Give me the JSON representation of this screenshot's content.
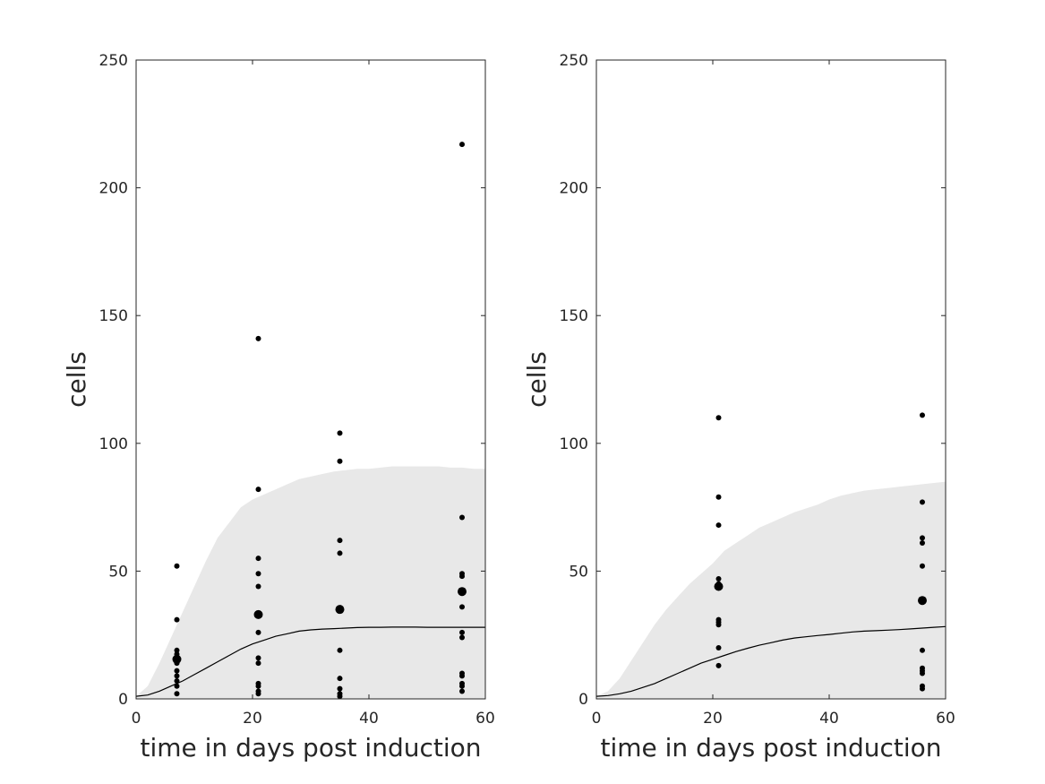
{
  "chart_data": [
    {
      "type": "scatter",
      "xlabel": "time in days post induction",
      "ylabel": "cells",
      "xlim": [
        0,
        60
      ],
      "ylim": [
        0,
        250
      ],
      "xticks": [
        0,
        20,
        40,
        60
      ],
      "yticks": [
        0,
        50,
        100,
        150,
        200,
        250
      ],
      "grid": false,
      "band_color": "#e8e8e8",
      "line_color": "#000000",
      "point_color": "#000000",
      "band": {
        "x": [
          0,
          2,
          4,
          6,
          8,
          10,
          12,
          14,
          16,
          18,
          20,
          22,
          24,
          26,
          28,
          30,
          32,
          34,
          36,
          38,
          40,
          42,
          44,
          46,
          48,
          50,
          52,
          54,
          56,
          58,
          60
        ],
        "lower": [
          0,
          0,
          0,
          0,
          0,
          0,
          0,
          0,
          0,
          0,
          0,
          0,
          0,
          0,
          0,
          0,
          0,
          0,
          0,
          0,
          0,
          0,
          0,
          0,
          0,
          0,
          0,
          0,
          0,
          0,
          0
        ],
        "upper": [
          1,
          5,
          14,
          24,
          34,
          44,
          54,
          63,
          69,
          75,
          78,
          80,
          82,
          84,
          86,
          87,
          88,
          89,
          89.5,
          90,
          90,
          90.5,
          91,
          91,
          91,
          91,
          91,
          90.5,
          90.5,
          90,
          90
        ]
      },
      "mean": {
        "x": [
          0,
          2,
          4,
          6,
          8,
          10,
          12,
          14,
          16,
          18,
          20,
          22,
          24,
          26,
          28,
          30,
          32,
          34,
          36,
          38,
          40,
          42,
          44,
          46,
          48,
          50,
          52,
          54,
          56,
          58,
          60
        ],
        "y": [
          1,
          1.5,
          3,
          5,
          7,
          9.5,
          12,
          14.5,
          17,
          19.5,
          21.5,
          23,
          24.5,
          25.5,
          26.5,
          27,
          27.3,
          27.5,
          27.7,
          27.9,
          28,
          28,
          28.1,
          28.1,
          28.1,
          28,
          28,
          28,
          28,
          28,
          28
        ]
      },
      "points": [
        {
          "x": 7,
          "y": 52
        },
        {
          "x": 7,
          "y": 31
        },
        {
          "x": 7,
          "y": 19
        },
        {
          "x": 7,
          "y": 17.5
        },
        {
          "x": 7,
          "y": 14
        },
        {
          "x": 7,
          "y": 11
        },
        {
          "x": 7,
          "y": 9
        },
        {
          "x": 7,
          "y": 7
        },
        {
          "x": 7,
          "y": 5
        },
        {
          "x": 7,
          "y": 2
        },
        {
          "x": 21,
          "y": 141
        },
        {
          "x": 21,
          "y": 82
        },
        {
          "x": 21,
          "y": 55
        },
        {
          "x": 21,
          "y": 49
        },
        {
          "x": 21,
          "y": 44
        },
        {
          "x": 21,
          "y": 26
        },
        {
          "x": 21,
          "y": 16
        },
        {
          "x": 21,
          "y": 14
        },
        {
          "x": 21,
          "y": 6
        },
        {
          "x": 21,
          "y": 5
        },
        {
          "x": 21,
          "y": 3
        },
        {
          "x": 21,
          "y": 2
        },
        {
          "x": 35,
          "y": 104
        },
        {
          "x": 35,
          "y": 93
        },
        {
          "x": 35,
          "y": 62
        },
        {
          "x": 35,
          "y": 57
        },
        {
          "x": 35,
          "y": 19
        },
        {
          "x": 35,
          "y": 8
        },
        {
          "x": 35,
          "y": 4
        },
        {
          "x": 35,
          "y": 2
        },
        {
          "x": 35,
          "y": 1
        },
        {
          "x": 56,
          "y": 217
        },
        {
          "x": 56,
          "y": 71
        },
        {
          "x": 56,
          "y": 49
        },
        {
          "x": 56,
          "y": 48
        },
        {
          "x": 56,
          "y": 36
        },
        {
          "x": 56,
          "y": 26
        },
        {
          "x": 56,
          "y": 24
        },
        {
          "x": 56,
          "y": 10
        },
        {
          "x": 56,
          "y": 9
        },
        {
          "x": 56,
          "y": 6
        },
        {
          "x": 56,
          "y": 5
        },
        {
          "x": 56,
          "y": 3
        }
      ],
      "means_markers": [
        {
          "x": 7,
          "y": 15.5
        },
        {
          "x": 21,
          "y": 33
        },
        {
          "x": 35,
          "y": 35
        },
        {
          "x": 56,
          "y": 42
        }
      ]
    },
    {
      "type": "scatter",
      "xlabel": "time in days post induction",
      "ylabel": "cells",
      "xlim": [
        0,
        60
      ],
      "ylim": [
        0,
        250
      ],
      "xticks": [
        0,
        20,
        40,
        60
      ],
      "yticks": [
        0,
        50,
        100,
        150,
        200,
        250
      ],
      "grid": false,
      "band_color": "#e8e8e8",
      "line_color": "#000000",
      "point_color": "#000000",
      "band": {
        "x": [
          0,
          2,
          4,
          6,
          8,
          10,
          12,
          14,
          16,
          18,
          20,
          22,
          24,
          26,
          28,
          30,
          32,
          34,
          36,
          38,
          40,
          42,
          44,
          46,
          48,
          50,
          52,
          54,
          56,
          58,
          60
        ],
        "lower": [
          0,
          0,
          0,
          0,
          0,
          0,
          0,
          0,
          0,
          0,
          0,
          0,
          0,
          0,
          0,
          0,
          0,
          0,
          0,
          0,
          0,
          0,
          0,
          0,
          0,
          0,
          0,
          0,
          0,
          0,
          0
        ],
        "upper": [
          1,
          3,
          8,
          15,
          22,
          29,
          35,
          40,
          45,
          49,
          53,
          58,
          61,
          64,
          67,
          69,
          71,
          73,
          74.5,
          76,
          78,
          79.5,
          80.5,
          81.5,
          82,
          82.5,
          83,
          83.5,
          84,
          84.5,
          85
        ]
      },
      "mean": {
        "x": [
          0,
          2,
          4,
          6,
          8,
          10,
          12,
          14,
          16,
          18,
          20,
          22,
          24,
          26,
          28,
          30,
          32,
          34,
          36,
          38,
          40,
          42,
          44,
          46,
          48,
          50,
          52,
          54,
          56,
          58,
          60
        ],
        "y": [
          1,
          1.3,
          2,
          3,
          4.5,
          6,
          8,
          10,
          12,
          14,
          15.5,
          17,
          18.5,
          19.8,
          21,
          22,
          23,
          23.8,
          24.3,
          24.8,
          25.2,
          25.7,
          26.2,
          26.5,
          26.7,
          26.9,
          27.1,
          27.4,
          27.7,
          28,
          28.3
        ]
      },
      "points": [
        {
          "x": 21,
          "y": 110
        },
        {
          "x": 21,
          "y": 79
        },
        {
          "x": 21,
          "y": 68
        },
        {
          "x": 21,
          "y": 47
        },
        {
          "x": 21,
          "y": 45
        },
        {
          "x": 21,
          "y": 31
        },
        {
          "x": 21,
          "y": 30
        },
        {
          "x": 21,
          "y": 29
        },
        {
          "x": 21,
          "y": 20
        },
        {
          "x": 21,
          "y": 13
        },
        {
          "x": 56,
          "y": 111
        },
        {
          "x": 56,
          "y": 77
        },
        {
          "x": 56,
          "y": 63
        },
        {
          "x": 56,
          "y": 61
        },
        {
          "x": 56,
          "y": 52
        },
        {
          "x": 56,
          "y": 19
        },
        {
          "x": 56,
          "y": 12
        },
        {
          "x": 56,
          "y": 11
        },
        {
          "x": 56,
          "y": 10
        },
        {
          "x": 56,
          "y": 5
        },
        {
          "x": 56,
          "y": 4
        }
      ],
      "means_markers": [
        {
          "x": 21,
          "y": 44
        },
        {
          "x": 56,
          "y": 38.5
        }
      ]
    }
  ]
}
